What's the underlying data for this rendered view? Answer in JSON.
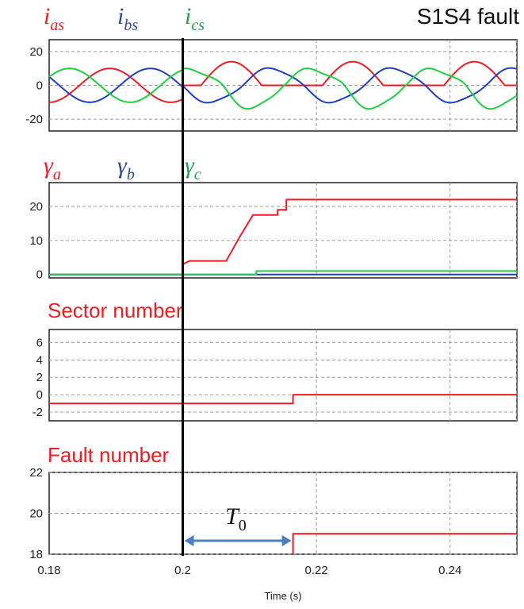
{
  "figure_title": "S1S4 fault",
  "colors": {
    "red": "#ee1c24",
    "blue": "#1f3fbf",
    "green": "#22cc44",
    "label_blue": "#2f4a8a",
    "label_green": "#1fa04a",
    "marker": "#000000",
    "arrow": "#4a7fc0"
  },
  "x_axis": {
    "label": "Time (s)",
    "range": [
      0.18,
      0.25
    ],
    "ticks": [
      0.18,
      0.2,
      0.22,
      0.24
    ],
    "tick_labels": [
      "0.18",
      "0.2",
      "0.22",
      "0.24"
    ]
  },
  "fault_time": 0.2,
  "T0": {
    "label_base": "T",
    "label_sub": "0",
    "start": 0.2,
    "end": 0.2165
  },
  "chart_data": [
    {
      "type": "line",
      "panel": "currents",
      "labels": [
        {
          "base": "i",
          "sub": "as",
          "color": "red"
        },
        {
          "base": "i",
          "sub": "bs",
          "color": "blue"
        },
        {
          "base": "i",
          "sub": "cs",
          "color": "green"
        }
      ],
      "ylim": [
        -27,
        27
      ],
      "yticks": [
        20,
        0,
        -20
      ],
      "ytick_labels": [
        "20",
        "0",
        "-20"
      ],
      "series": [
        {
          "color": "red",
          "amplitude_before": 10,
          "frequency_hz": 55,
          "phase_deg": -90,
          "after_fault": "negative half-wave zeroed, peaks up to 15"
        },
        {
          "color": "blue",
          "amplitude_before": 10,
          "frequency_hz": 55,
          "phase_deg": -210
        },
        {
          "color": "green",
          "amplitude_before": 10,
          "frequency_hz": 55,
          "phase_deg": 30,
          "after_fault": "distorted, min near -15"
        }
      ]
    },
    {
      "type": "line",
      "panel": "gammas",
      "labels": [
        {
          "base": "γ",
          "sub": "a",
          "color": "red"
        },
        {
          "base": "γ",
          "sub": "b",
          "color": "blue"
        },
        {
          "base": "γ",
          "sub": "c",
          "color": "green"
        }
      ],
      "ylim": [
        -1,
        27
      ],
      "yticks": [
        20,
        10,
        0
      ],
      "ytick_labels": [
        "20",
        "10",
        "0"
      ],
      "series": [
        {
          "color": "red",
          "x": [
            0.18,
            0.2,
            0.2,
            0.201,
            0.2065,
            0.2085,
            0.2105,
            0.2142,
            0.2142,
            0.2155,
            0.2155,
            0.25
          ],
          "y": [
            0,
            0,
            3,
            4,
            4,
            11,
            17.5,
            17.5,
            19,
            19,
            22,
            22
          ]
        },
        {
          "color": "blue",
          "x": [
            0.18,
            0.25
          ],
          "y": [
            0,
            0
          ]
        },
        {
          "color": "green",
          "x": [
            0.18,
            0.211,
            0.211,
            0.25
          ],
          "y": [
            0,
            0,
            1,
            1
          ]
        }
      ]
    },
    {
      "type": "line",
      "panel": "sector",
      "title": "Sector number",
      "ylim": [
        -3,
        7.5
      ],
      "yticks": [
        6,
        4,
        2,
        0,
        -2
      ],
      "ytick_labels": [
        "6",
        "4",
        "2",
        "0",
        "-2"
      ],
      "series": [
        {
          "color": "red",
          "x": [
            0.18,
            0.2165,
            0.2165,
            0.25
          ],
          "y": [
            -1,
            -1,
            0,
            0
          ]
        }
      ]
    },
    {
      "type": "line",
      "panel": "fault",
      "title": "Fault number",
      "ylim": [
        18,
        22
      ],
      "yticks": [
        22,
        20,
        18
      ],
      "ytick_labels": [
        "22",
        "20",
        "18"
      ],
      "series": [
        {
          "color": "red",
          "x": [
            0.2165,
            0.2165,
            0.25
          ],
          "y": [
            18,
            19,
            19
          ]
        }
      ]
    }
  ]
}
